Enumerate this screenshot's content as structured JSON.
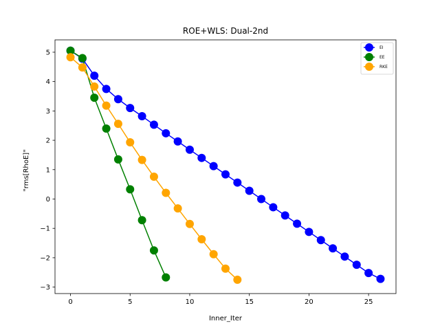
{
  "chart_data": {
    "type": "line",
    "title": "ROE+WLS: Dual-2nd",
    "xlabel": "Inner_Iter",
    "ylabel": "\"rms[RhoE]\"",
    "xlim": [
      -1.3,
      27.3
    ],
    "ylim": [
      -3.22,
      5.42
    ],
    "xticks": [
      0,
      5,
      10,
      15,
      20,
      25
    ],
    "yticks": [
      -3,
      -2,
      -1,
      0,
      1,
      2,
      3,
      4,
      5
    ],
    "grid": false,
    "legend_position": "top-right",
    "series": [
      {
        "name": "EI",
        "color": "#0000ff",
        "marker": "circle",
        "x": [
          0,
          1,
          2,
          3,
          4,
          5,
          6,
          7,
          8,
          9,
          10,
          11,
          12,
          13,
          14,
          15,
          16,
          17,
          18,
          19,
          20,
          21,
          22,
          23,
          24,
          25,
          26
        ],
        "y": [
          5.05,
          4.78,
          4.2,
          3.75,
          3.4,
          3.1,
          2.82,
          2.53,
          2.24,
          1.96,
          1.68,
          1.4,
          1.12,
          0.84,
          0.56,
          0.28,
          0.0,
          -0.28,
          -0.56,
          -0.84,
          -1.12,
          -1.4,
          -1.68,
          -1.96,
          -2.24,
          -2.52,
          -2.72
        ]
      },
      {
        "name": "EE",
        "color": "#008000",
        "marker": "circle",
        "x": [
          0,
          1,
          2,
          3,
          4,
          5,
          6,
          7,
          8
        ],
        "y": [
          5.05,
          4.8,
          3.45,
          2.4,
          1.35,
          0.33,
          -0.72,
          -1.75,
          -2.67
        ]
      },
      {
        "name": "RKE",
        "color": "#ffa500",
        "marker": "circle",
        "x": [
          0,
          1,
          2,
          3,
          4,
          5,
          6,
          7,
          8,
          9,
          10,
          11,
          12,
          13,
          14
        ],
        "y": [
          4.83,
          4.48,
          3.83,
          3.18,
          2.56,
          1.93,
          1.33,
          0.76,
          0.21,
          -0.32,
          -0.85,
          -1.37,
          -1.88,
          -2.37,
          -2.75
        ]
      }
    ]
  }
}
